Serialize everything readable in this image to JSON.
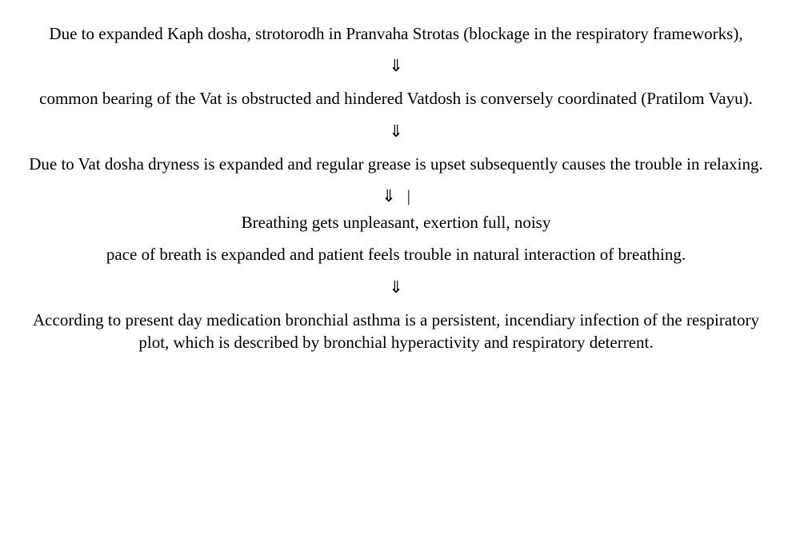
{
  "flow": {
    "type": "flowchart",
    "orientation": "vertical",
    "background_color": "#ffffff",
    "text_color": "#000000",
    "font_family": "Times New Roman",
    "font_size_pt": 16,
    "arrow_glyph": "⇓",
    "bar_glyph": "|",
    "steps": [
      "Due to expanded Kaph dosha, strotorodh in Pranvaha Strotas (blockage in the respiratory frameworks),",
      "common bearing of the Vat is obstructed and hindered Vatdosh is conversely coordinated (Pratilom Vayu).",
      "Due to Vat dosha dryness is expanded and regular grease is upset subsequently causes the trouble in relaxing.",
      "Breathing gets unpleasant, exertion full, noisy",
      "pace of breath is expanded and patient feels trouble in natural interaction of breathing.",
      "According to present day medication bronchial asthma is a persistent, incendiary infection of the respiratory plot, which is described by bronchial hyperactivity and respiratory deterrent."
    ],
    "arrow3_has_bar": true
  }
}
